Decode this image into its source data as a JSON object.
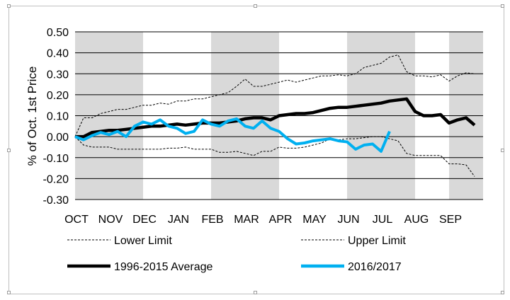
{
  "chart_data": {
    "type": "line",
    "title": "",
    "xlabel": "",
    "ylabel": "% of Oct. 1st Price",
    "ylim": [
      -0.3,
      0.5
    ],
    "yticks": [
      "0.50",
      "0.40",
      "0.30",
      "0.20",
      "0.10",
      "0.00",
      "-0.10",
      "-0.20",
      "-0.30"
    ],
    "categories": [
      "OCT",
      "NOV",
      "DEC",
      "JAN",
      "FEB",
      "MAR",
      "APR",
      "MAY",
      "JUN",
      "JUL",
      "AUG",
      "SEP"
    ],
    "shaded_months": [
      "OCT",
      "NOV",
      "FEB",
      "MAR",
      "JUN",
      "JUL",
      "SEP"
    ],
    "grid": true,
    "legend_position": "bottom",
    "series": [
      {
        "name": "Lower Limit",
        "color": "#000000",
        "style": "dashed",
        "x": [
          0,
          0.25,
          0.5,
          0.75,
          1,
          1.25,
          1.5,
          1.75,
          2,
          2.25,
          2.5,
          2.75,
          3,
          3.25,
          3.5,
          3.75,
          4,
          4.25,
          4.5,
          4.75,
          5,
          5.25,
          5.5,
          5.75,
          6,
          6.25,
          6.5,
          6.75,
          7,
          7.25,
          7.5,
          7.75,
          8,
          8.25,
          8.5,
          8.75,
          9,
          9.25,
          9.5,
          9.75,
          10,
          10.25,
          10.5,
          10.75,
          11,
          11.25,
          11.5,
          11.75
        ],
        "values": [
          0.0,
          -0.04,
          -0.05,
          -0.05,
          -0.05,
          -0.06,
          -0.06,
          -0.06,
          -0.06,
          -0.06,
          -0.06,
          -0.055,
          -0.055,
          -0.05,
          -0.06,
          -0.06,
          -0.06,
          -0.075,
          -0.075,
          -0.07,
          -0.08,
          -0.09,
          -0.07,
          -0.07,
          -0.05,
          -0.055,
          -0.055,
          -0.05,
          -0.04,
          -0.03,
          -0.01,
          -0.015,
          -0.01,
          -0.01,
          -0.005,
          0.0,
          0.0,
          -0.01,
          -0.02,
          -0.08,
          -0.09,
          -0.09,
          -0.09,
          -0.09,
          -0.13,
          -0.13,
          -0.135,
          -0.19
        ]
      },
      {
        "name": "Upper Limit",
        "color": "#000000",
        "style": "dashed",
        "x": [
          0,
          0.25,
          0.5,
          0.75,
          1,
          1.25,
          1.5,
          1.75,
          2,
          2.25,
          2.5,
          2.75,
          3,
          3.25,
          3.5,
          3.75,
          4,
          4.25,
          4.5,
          4.75,
          5,
          5.25,
          5.5,
          5.75,
          6,
          6.25,
          6.5,
          6.75,
          7,
          7.25,
          7.5,
          7.75,
          8,
          8.25,
          8.5,
          8.75,
          9,
          9.25,
          9.5,
          9.75,
          10,
          10.25,
          10.5,
          10.75,
          11,
          11.25,
          11.5,
          11.75
        ],
        "values": [
          0.0,
          0.09,
          0.09,
          0.11,
          0.12,
          0.13,
          0.13,
          0.14,
          0.15,
          0.15,
          0.16,
          0.155,
          0.17,
          0.17,
          0.18,
          0.18,
          0.19,
          0.2,
          0.21,
          0.24,
          0.275,
          0.24,
          0.24,
          0.25,
          0.26,
          0.27,
          0.26,
          0.27,
          0.28,
          0.29,
          0.29,
          0.295,
          0.29,
          0.3,
          0.33,
          0.34,
          0.35,
          0.38,
          0.39,
          0.31,
          0.29,
          0.29,
          0.285,
          0.295,
          0.265,
          0.29,
          0.305,
          0.3
        ]
      },
      {
        "name": "1996-2015 Average",
        "color": "#000000",
        "style": "solid",
        "x": [
          0,
          0.25,
          0.5,
          0.75,
          1,
          1.25,
          1.5,
          1.75,
          2,
          2.25,
          2.5,
          2.75,
          3,
          3.25,
          3.5,
          3.75,
          4,
          4.25,
          4.5,
          4.75,
          5,
          5.25,
          5.5,
          5.75,
          6,
          6.25,
          6.5,
          6.75,
          7,
          7.25,
          7.5,
          7.75,
          8,
          8.25,
          8.5,
          8.75,
          9,
          9.25,
          9.5,
          9.75,
          10,
          10.25,
          10.5,
          10.75,
          11,
          11.25,
          11.5,
          11.75
        ],
        "values": [
          0.0,
          0.0,
          0.02,
          0.025,
          0.03,
          0.03,
          0.035,
          0.04,
          0.045,
          0.05,
          0.05,
          0.055,
          0.06,
          0.055,
          0.06,
          0.065,
          0.065,
          0.065,
          0.07,
          0.075,
          0.085,
          0.09,
          0.09,
          0.08,
          0.1,
          0.105,
          0.11,
          0.11,
          0.115,
          0.125,
          0.135,
          0.14,
          0.14,
          0.145,
          0.15,
          0.155,
          0.16,
          0.17,
          0.175,
          0.18,
          0.12,
          0.1,
          0.1,
          0.105,
          0.065,
          0.08,
          0.09,
          0.055
        ]
      },
      {
        "name": "2016/2017",
        "color": "#00B0F0",
        "style": "solid",
        "x": [
          0,
          0.25,
          0.5,
          0.75,
          1,
          1.25,
          1.5,
          1.75,
          2,
          2.25,
          2.5,
          2.75,
          3,
          3.25,
          3.5,
          3.75,
          4,
          4.25,
          4.5,
          4.75,
          5,
          5.25,
          5.5,
          5.75,
          6,
          6.25,
          6.5,
          6.75,
          7,
          7.25,
          7.5,
          7.75,
          8,
          8.25,
          8.5,
          8.75,
          9,
          9.25
        ],
        "values": [
          0.0,
          -0.015,
          0.005,
          0.02,
          0.01,
          0.025,
          0.0,
          0.05,
          0.07,
          0.06,
          0.08,
          0.05,
          0.04,
          0.015,
          0.025,
          0.08,
          0.06,
          0.05,
          0.075,
          0.085,
          0.05,
          0.04,
          0.075,
          0.04,
          0.025,
          -0.01,
          -0.035,
          -0.03,
          -0.02,
          -0.015,
          -0.01,
          -0.02,
          -0.025,
          -0.06,
          -0.04,
          -0.035,
          -0.07,
          0.025
        ]
      }
    ]
  }
}
